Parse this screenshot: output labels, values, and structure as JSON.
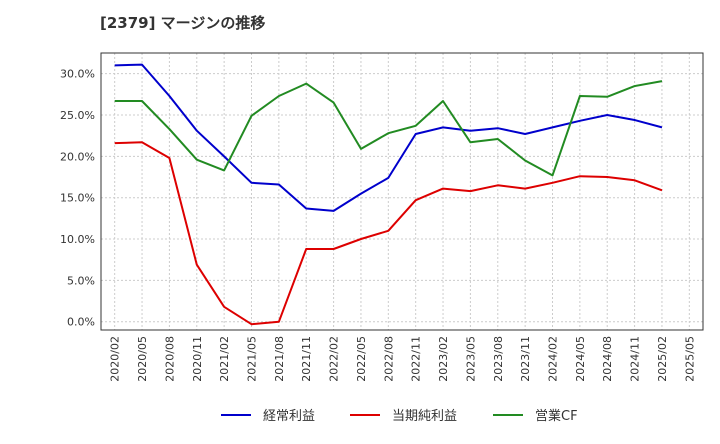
{
  "chart_data": {
    "type": "line",
    "title": "[2379]  マージンの推移",
    "xlabel": "",
    "ylabel": "",
    "x": [
      "2020/02",
      "2020/05",
      "2020/08",
      "2020/11",
      "2021/02",
      "2021/05",
      "2021/08",
      "2021/11",
      "2022/02",
      "2022/05",
      "2022/08",
      "2022/11",
      "2023/02",
      "2023/05",
      "2023/08",
      "2023/11",
      "2024/02",
      "2024/05",
      "2024/08",
      "2024/11",
      "2025/02",
      "2025/05"
    ],
    "ylim": [
      -1.0,
      32.5
    ],
    "yticks": [
      0,
      5,
      10,
      15,
      20,
      25,
      30
    ],
    "ytick_labels": [
      "0.0%",
      "5.0%",
      "10.0%",
      "15.0%",
      "20.0%",
      "25.0%",
      "30.0%"
    ],
    "grid": true,
    "legend_position": "bottom",
    "series": [
      {
        "name": "経常利益",
        "color": "#0000cc",
        "values": [
          31.0,
          31.1,
          27.3,
          23.1,
          20.0,
          16.8,
          16.6,
          13.7,
          13.4,
          15.5,
          17.4,
          22.7,
          23.5,
          23.1,
          23.4,
          22.7,
          23.5,
          24.3,
          25.0,
          24.4,
          23.5,
          null
        ]
      },
      {
        "name": "当期純利益",
        "color": "#dd0000",
        "values": [
          21.6,
          21.7,
          19.8,
          6.9,
          1.8,
          -0.3,
          0.0,
          8.8,
          8.8,
          10.0,
          11.0,
          14.7,
          16.1,
          15.8,
          16.5,
          16.1,
          16.8,
          17.6,
          17.5,
          17.1,
          15.9,
          null
        ]
      },
      {
        "name": "営業CF",
        "color": "#228b22",
        "values": [
          26.7,
          26.7,
          23.3,
          19.6,
          18.3,
          24.9,
          27.3,
          28.8,
          26.5,
          20.9,
          22.8,
          23.7,
          26.7,
          21.7,
          22.1,
          19.5,
          17.7,
          27.3,
          27.2,
          28.5,
          29.1,
          null
        ]
      }
    ]
  }
}
